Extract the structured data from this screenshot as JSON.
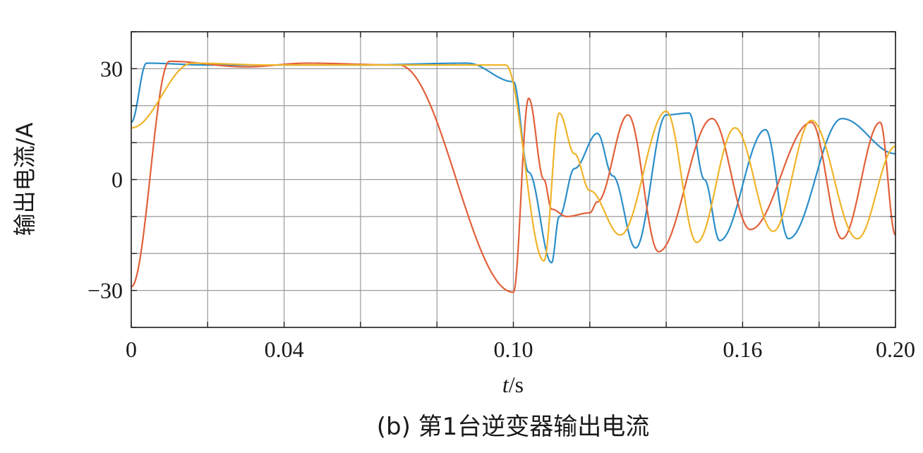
{
  "chart_data": {
    "type": "line",
    "xlabel_italic": "t",
    "xlabel_unit": "/s",
    "ylabel": "输出电流/A",
    "caption": "(b) 第1台逆变器输出电流",
    "xlim": [
      0,
      0.2
    ],
    "ylim": [
      -40,
      40
    ],
    "x_ticks": [
      0,
      0.02,
      0.04,
      0.06,
      0.08,
      0.1,
      0.12,
      0.14,
      0.16,
      0.18,
      0.2
    ],
    "x_tick_labels": [
      {
        "value": 0,
        "label": "0"
      },
      {
        "value": 0.04,
        "label": "0.04"
      },
      {
        "value": 0.1,
        "label": "0.10"
      },
      {
        "value": 0.16,
        "label": "0.16"
      },
      {
        "value": 0.2,
        "label": "0.20"
      }
    ],
    "y_ticks": [
      -40,
      -30,
      -20,
      -10,
      0,
      10,
      20,
      30,
      40
    ],
    "y_tick_labels": [
      {
        "value": 30,
        "label": "30"
      },
      {
        "value": 0,
        "label": "0"
      },
      {
        "value": -30,
        "label": "−30"
      }
    ],
    "grid": true,
    "series": [
      {
        "color": "#2a8ec9",
        "points": [
          [
            0.0,
            15.5
          ],
          [
            0.004,
            31.5
          ],
          [
            0.02,
            31.0
          ],
          [
            0.06,
            31.0
          ],
          [
            0.088,
            31.5
          ],
          [
            0.1,
            26.5
          ],
          [
            0.104,
            2.0
          ],
          [
            0.11,
            -22.5
          ],
          [
            0.112,
            -10.0
          ],
          [
            0.116,
            3.0
          ],
          [
            0.122,
            12.5
          ],
          [
            0.126,
            1.0
          ],
          [
            0.132,
            -18.5
          ],
          [
            0.14,
            17.5
          ],
          [
            0.146,
            18.0
          ],
          [
            0.15,
            0.0
          ],
          [
            0.154,
            -16.5
          ],
          [
            0.166,
            13.5
          ],
          [
            0.172,
            -16.0
          ],
          [
            0.186,
            16.5
          ],
          [
            0.2,
            7.0
          ]
        ]
      },
      {
        "color": "#e2603a",
        "points": [
          [
            0.0,
            -29.0
          ],
          [
            0.01,
            32.0
          ],
          [
            0.03,
            30.5
          ],
          [
            0.046,
            31.5
          ],
          [
            0.07,
            31.0
          ],
          [
            0.1,
            -30.5
          ],
          [
            0.104,
            22.0
          ],
          [
            0.108,
            0.0
          ],
          [
            0.11,
            -8.0
          ],
          [
            0.114,
            -10.0
          ],
          [
            0.12,
            -9.0
          ],
          [
            0.122,
            -6.0
          ],
          [
            0.13,
            17.5
          ],
          [
            0.138,
            -19.5
          ],
          [
            0.152,
            16.5
          ],
          [
            0.162,
            -13.5
          ],
          [
            0.178,
            15.5
          ],
          [
            0.186,
            -16.0
          ],
          [
            0.196,
            15.5
          ],
          [
            0.2,
            -15.0
          ]
        ]
      },
      {
        "color": "#f0b429",
        "points": [
          [
            0.0,
            14.0
          ],
          [
            0.016,
            31.5
          ],
          [
            0.036,
            31.0
          ],
          [
            0.06,
            31.0
          ],
          [
            0.098,
            31.0
          ],
          [
            0.108,
            -22.0
          ],
          [
            0.112,
            18.0
          ],
          [
            0.116,
            7.0
          ],
          [
            0.12,
            -3.0
          ],
          [
            0.128,
            -15.0
          ],
          [
            0.14,
            18.5
          ],
          [
            0.148,
            -17.0
          ],
          [
            0.158,
            14.0
          ],
          [
            0.168,
            -14.0
          ],
          [
            0.178,
            16.0
          ],
          [
            0.19,
            -16.0
          ],
          [
            0.2,
            9.0
          ]
        ]
      }
    ]
  }
}
